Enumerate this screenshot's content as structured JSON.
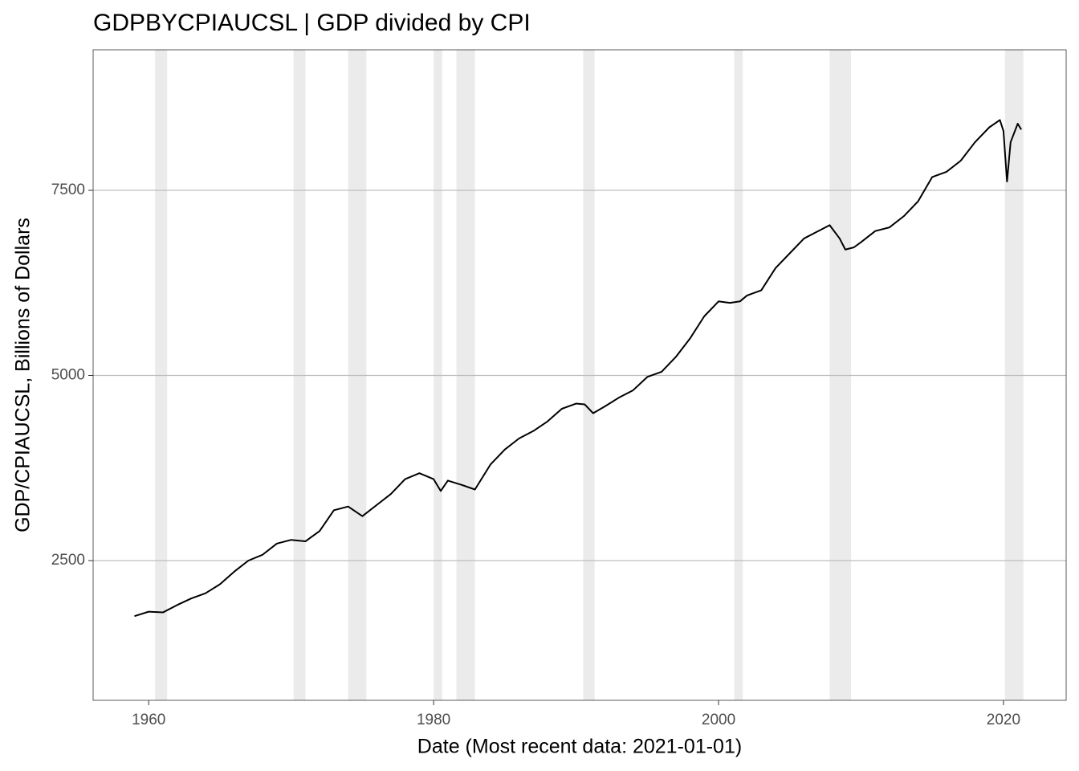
{
  "chart_data": {
    "type": "line",
    "title": "GDPBYCPIAUCSL | GDP divided by CPI",
    "x_label": "Date (Most recent data: 2021-01-01)",
    "y_label": "GDP/CPIAUCSL, Billions of Dollars",
    "color": "#000000",
    "shading_color": "#ebebeb",
    "grid": true,
    "xlim": [
      1956.1,
      2024.4
    ],
    "ylim": [
      613,
      9398
    ],
    "xticks": [
      1960,
      1980,
      2000,
      2020
    ],
    "yticks": [
      2500,
      5000,
      7500
    ],
    "shading": [
      [
        1960.45,
        1961.3
      ],
      [
        1970.17,
        1971.0
      ],
      [
        1974.0,
        1975.28
      ],
      [
        1980.0,
        1980.6
      ],
      [
        1981.6,
        1982.9
      ],
      [
        1990.5,
        1991.3
      ],
      [
        2001.1,
        2001.7
      ],
      [
        2007.8,
        2009.3
      ],
      [
        2020.1,
        2021.4
      ]
    ],
    "x": [
      1959,
      1960,
      1961,
      1962,
      1963,
      1964,
      1965,
      1966,
      1967,
      1968,
      1969,
      1970,
      1971,
      1972,
      1973,
      1974,
      1975,
      1976,
      1977,
      1978,
      1979,
      1980,
      1980.5,
      1981,
      1982,
      1982.9,
      1984,
      1985,
      1986,
      1987,
      1988,
      1989,
      1990,
      1990.6,
      1991.2,
      1992,
      1993,
      1994,
      1995,
      1996,
      1997,
      1998,
      1999,
      2000,
      2000.8,
      2001.5,
      2002,
      2003,
      2004,
      2005,
      2006,
      2007,
      2007.8,
      2008.5,
      2008.9,
      2009.5,
      2010,
      2011,
      2012,
      2013,
      2014,
      2015,
      2016,
      2017,
      2018,
      2019,
      2019.75,
      2020,
      2020.25,
      2020.5,
      2021,
      2021.25
    ],
    "values": [
      1750,
      1810,
      1800,
      1900,
      1990,
      2060,
      2180,
      2350,
      2500,
      2580,
      2730,
      2780,
      2760,
      2900,
      3180,
      3230,
      3100,
      3250,
      3400,
      3600,
      3680,
      3600,
      3440,
      3580,
      3520,
      3460,
      3800,
      4000,
      4150,
      4250,
      4380,
      4550,
      4620,
      4610,
      4490,
      4580,
      4700,
      4800,
      4980,
      5050,
      5250,
      5500,
      5800,
      6000,
      5980,
      6000,
      6080,
      6150,
      6450,
      6650,
      6850,
      6950,
      7030,
      6850,
      6700,
      6730,
      6800,
      6950,
      7000,
      7150,
      7350,
      7680,
      7750,
      7900,
      8150,
      8350,
      8450,
      8300,
      7620,
      8150,
      8400,
      8320
    ]
  }
}
